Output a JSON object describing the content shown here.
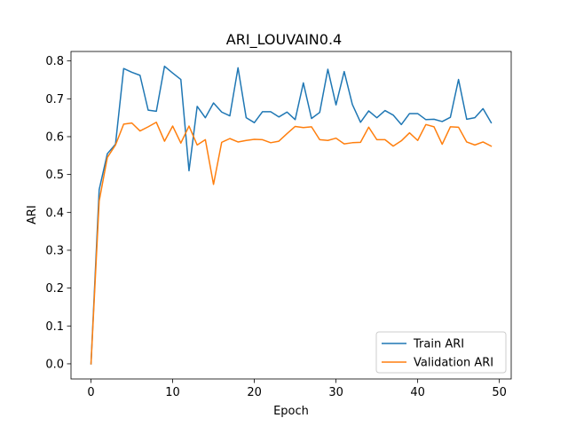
{
  "chart_data": {
    "type": "line",
    "title": "ARI_LOUVAIN0.4",
    "xlabel": "Epoch",
    "ylabel": "ARI",
    "xlim": [
      -2.45,
      51.45
    ],
    "ylim": [
      -0.04,
      0.825
    ],
    "xticks": [
      0,
      10,
      20,
      30,
      40,
      50
    ],
    "yticks": [
      0.0,
      0.1,
      0.2,
      0.3,
      0.4,
      0.5,
      0.6,
      0.7,
      0.8
    ],
    "grid": false,
    "legend_position": "lower-right",
    "x": [
      0,
      1,
      2,
      3,
      4,
      5,
      6,
      7,
      8,
      9,
      10,
      11,
      12,
      13,
      14,
      15,
      16,
      17,
      18,
      19,
      20,
      21,
      22,
      23,
      24,
      25,
      26,
      27,
      28,
      29,
      30,
      31,
      32,
      33,
      34,
      35,
      36,
      37,
      38,
      39,
      40,
      41,
      42,
      43,
      44,
      45,
      46,
      47,
      48,
      49
    ],
    "series": [
      {
        "name": "Train ARI",
        "color": "#1f77b4",
        "values": [
          0.0,
          0.46,
          0.555,
          0.58,
          0.78,
          0.77,
          0.762,
          0.67,
          0.667,
          0.786,
          0.768,
          0.751,
          0.51,
          0.68,
          0.65,
          0.689,
          0.665,
          0.655,
          0.782,
          0.65,
          0.637,
          0.666,
          0.666,
          0.652,
          0.665,
          0.645,
          0.742,
          0.648,
          0.664,
          0.778,
          0.684,
          0.772,
          0.685,
          0.638,
          0.668,
          0.65,
          0.669,
          0.657,
          0.632,
          0.661,
          0.661,
          0.645,
          0.646,
          0.64,
          0.651,
          0.751,
          0.646,
          0.65,
          0.674,
          0.637
        ]
      },
      {
        "name": "Validation ARI",
        "color": "#ff7f0e",
        "values": [
          0.0,
          0.43,
          0.545,
          0.578,
          0.633,
          0.636,
          0.615,
          0.626,
          0.638,
          0.588,
          0.628,
          0.583,
          0.628,
          0.578,
          0.592,
          0.474,
          0.585,
          0.595,
          0.586,
          0.59,
          0.593,
          0.592,
          0.584,
          0.588,
          0.608,
          0.627,
          0.624,
          0.626,
          0.592,
          0.59,
          0.596,
          0.581,
          0.584,
          0.585,
          0.625,
          0.592,
          0.592,
          0.575,
          0.589,
          0.61,
          0.59,
          0.632,
          0.626,
          0.58,
          0.626,
          0.625,
          0.586,
          0.578,
          0.586,
          0.575
        ]
      }
    ]
  }
}
